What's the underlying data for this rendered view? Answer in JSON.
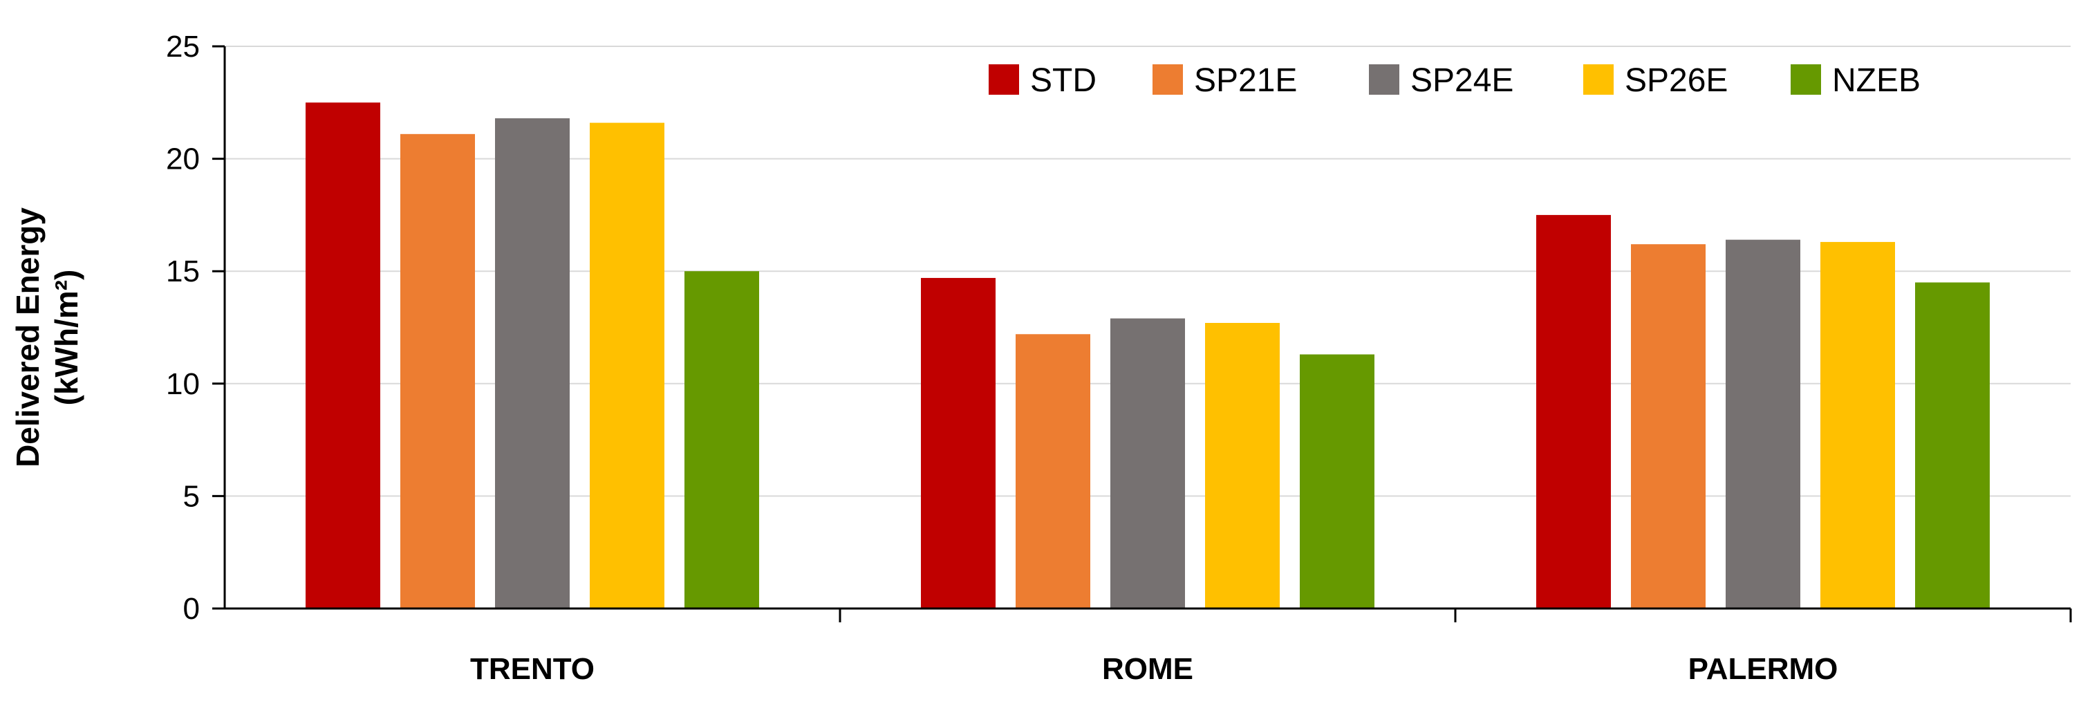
{
  "chart_data": {
    "type": "bar",
    "title": "",
    "xlabel": "",
    "ylabel": "Delivered Energy",
    "ylabel_unit": "(kWh/m²)",
    "ylim": [
      0,
      25
    ],
    "yticks": [
      0,
      5,
      10,
      15,
      20,
      25
    ],
    "grid": true,
    "legend_position": "top-right",
    "categories": [
      "TRENTO",
      "ROME",
      "PALERMO"
    ],
    "series": [
      {
        "name": "STD",
        "color": "#C00000",
        "values": [
          22.5,
          14.7,
          17.5
        ]
      },
      {
        "name": "SP21E",
        "color": "#ED7D31",
        "values": [
          21.1,
          12.2,
          16.2
        ]
      },
      {
        "name": "SP24E",
        "color": "#767171",
        "values": [
          21.8,
          12.9,
          16.4
        ]
      },
      {
        "name": "SP26E",
        "color": "#FFC000",
        "values": [
          21.6,
          12.7,
          16.3
        ]
      },
      {
        "name": "NZEB",
        "color": "#669900",
        "values": [
          15.0,
          11.3,
          14.5
        ]
      }
    ]
  }
}
